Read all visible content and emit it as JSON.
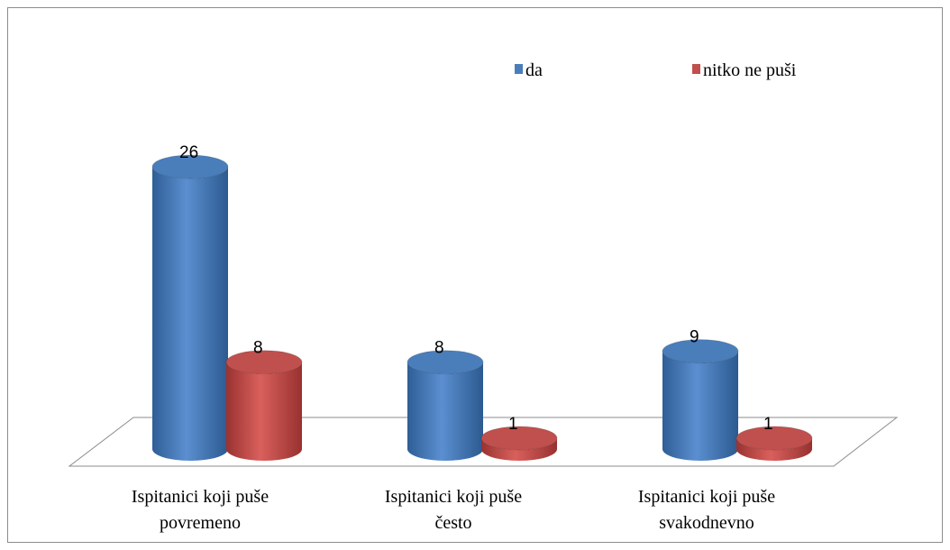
{
  "chart_data": {
    "type": "bar3d",
    "categories": [
      "Ispitanici koji puše povremeno",
      "Ispitanici koji puše često",
      "Ispitanici koji puše svakodnevno"
    ],
    "series": [
      {
        "name": "da",
        "color": "#4a7ebb",
        "values": [
          26,
          8,
          9
        ]
      },
      {
        "name": "nitko ne puši",
        "color": "#c0504d",
        "values": [
          8,
          1,
          1
        ]
      }
    ],
    "legend": "top"
  }
}
